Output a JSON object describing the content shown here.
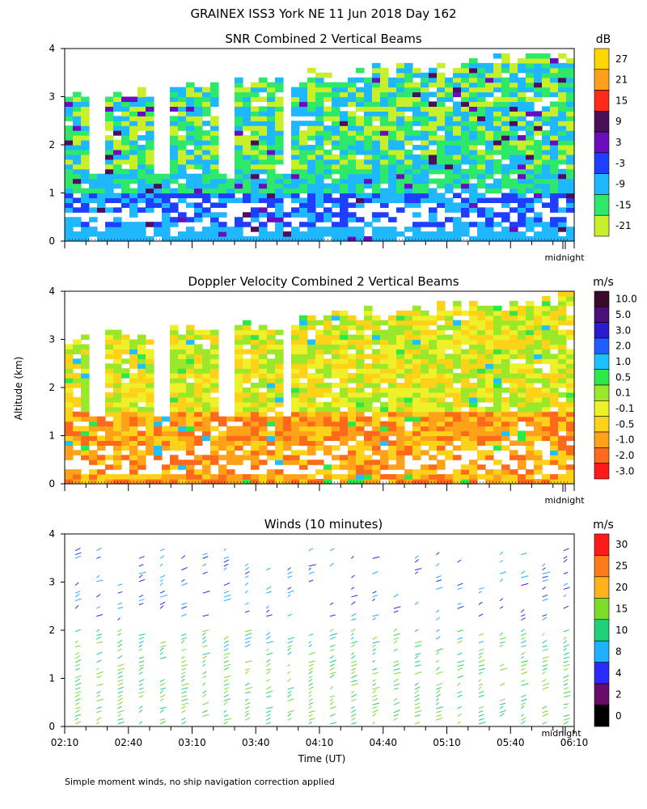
{
  "figure_title": "GRAINEX ISS3 York NE  11 Jun 2018 Day 162",
  "ylabel": "Altitude (km)",
  "xlabel": "Time (UT)",
  "note": "Simple moment winds, no ship navigation correction applied",
  "midnight_label": "midnight",
  "chart_data": [
    {
      "type": "heatmap",
      "title": "SNR Combined 2 Vertical Beams",
      "ylim": [
        0,
        4
      ],
      "yticks": [
        0,
        1,
        2,
        3,
        4
      ],
      "xlim": [
        "02:10",
        "06:10"
      ],
      "colorbar": {
        "unit": "dB",
        "labels": [
          "27",
          "21",
          "15",
          "9",
          "3",
          "-3",
          "-9",
          "-15",
          "-21"
        ],
        "colors": [
          "#ffd700",
          "#ff9f1c",
          "#ff2a1a",
          "#4b0f5a",
          "#6a0dbf",
          "#1f3fff",
          "#1fb8ff",
          "#2ee86a",
          "#c8f02a"
        ]
      }
    },
    {
      "type": "heatmap",
      "title": "Doppler Velocity Combined 2 Vertical Beams",
      "ylim": [
        0,
        4
      ],
      "yticks": [
        0,
        1,
        2,
        3,
        4
      ],
      "xlim": [
        "02:10",
        "06:10"
      ],
      "colorbar": {
        "unit": "m/s",
        "labels": [
          "10.0",
          "5.0",
          "3.0",
          "2.0",
          "1.0",
          "0.5",
          "0.1",
          "-0.1",
          "-0.5",
          "-1.0",
          "-2.0",
          "-3.0"
        ],
        "colors": [
          "#3a0a2a",
          "#4b0f7a",
          "#2a1ad0",
          "#1f5fff",
          "#1fc0ff",
          "#2ee84a",
          "#9be82a",
          "#eef02a",
          "#ffd21a",
          "#ffa21a",
          "#ff6a1a",
          "#ff1a1a"
        ]
      }
    },
    {
      "type": "scatter",
      "title": "Winds (10 minutes)",
      "ylim": [
        0,
        4
      ],
      "yticks": [
        0,
        1,
        2,
        3,
        4
      ],
      "xlim": [
        "02:10",
        "06:10"
      ],
      "xticks": [
        "02:10",
        "02:40",
        "03:10",
        "03:40",
        "04:10",
        "04:40",
        "05:10",
        "05:40",
        "06:10"
      ],
      "colorbar": {
        "unit": "m/s",
        "labels": [
          "30",
          "25",
          "20",
          "15",
          "10",
          "8",
          "4",
          "2",
          "0"
        ],
        "colors": [
          "#ff1a1a",
          "#ff7a1a",
          "#ffb21a",
          "#7ddc2a",
          "#22d07a",
          "#1fb0ff",
          "#2a2aff",
          "#6a0a6a",
          "#000000"
        ]
      }
    }
  ]
}
